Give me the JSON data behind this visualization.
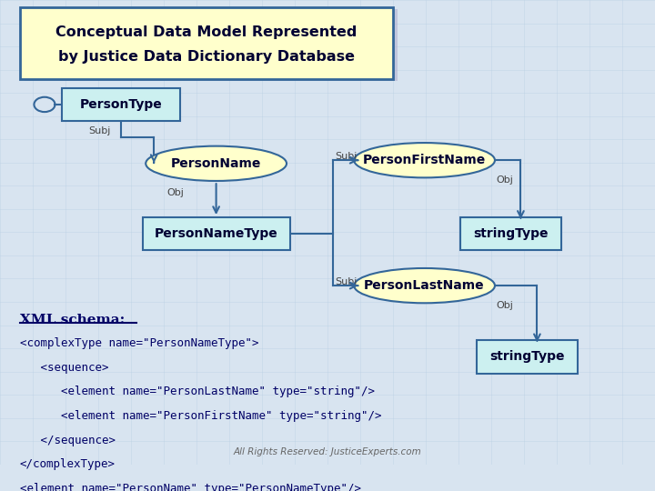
{
  "title_line1": "Conceptual Data Model Represented",
  "title_line2": "by Justice Data Dictionary Database",
  "title_box_color": "#ffffcc",
  "title_box_edge": "#336699",
  "bg_color": "#d8e4f0",
  "rect_fill": "#ccf0f0",
  "rect_edge": "#336699",
  "ellipse_fill": "#ffffcc",
  "ellipse_edge": "#336699",
  "text_color": "#000033",
  "xml_text_color": "#000066",
  "footer_color": "#666666",
  "xml_lines": [
    "XML schema:",
    "<complexType name=\"PersonNameType\">",
    "   <sequence>",
    "      <element name=\"PersonLastName\" type=\"string\"/>",
    "      <element name=\"PersonFirstName\" type=\"string\"/>",
    "   </sequence>",
    "</complexType>",
    "<element name=\"PersonName\" type=\"PersonNameType\"/>"
  ],
  "footer": "All Rights Reserved: JusticeExperts.com"
}
